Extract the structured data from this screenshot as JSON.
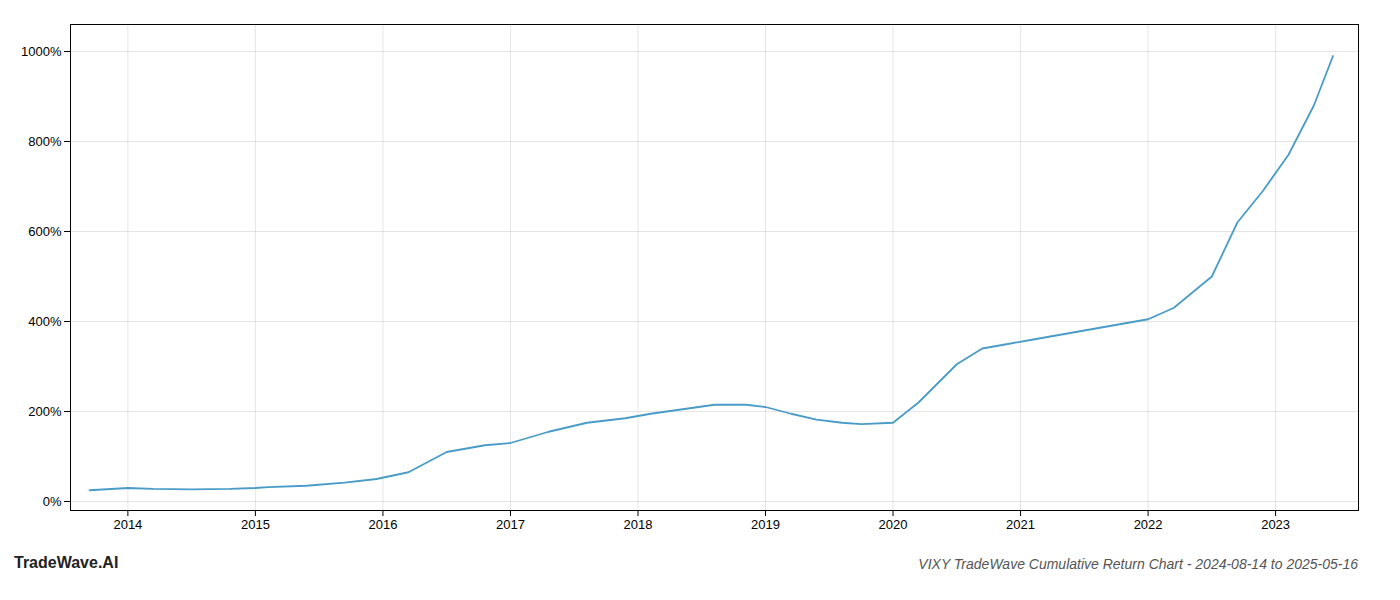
{
  "chart_data": {
    "type": "line",
    "title": "VIXY TradeWave Cumulative Return Chart - 2024-08-14 to 2025-05-16",
    "annotations": [
      "TradeWave.AI"
    ],
    "color": "#4a9cc8",
    "x": [
      2013.7,
      2014.0,
      2014.2,
      2014.5,
      2014.8,
      2015.0,
      2015.1,
      2015.4,
      2015.7,
      2015.95,
      2016.2,
      2016.5,
      2016.8,
      2017.0,
      2017.3,
      2017.6,
      2017.9,
      2018.1,
      2018.35,
      2018.6,
      2018.85,
      2019.0,
      2019.2,
      2019.4,
      2019.6,
      2019.75,
      2020.0,
      2020.2,
      2020.5,
      2020.7,
      2020.9,
      2021.1,
      2021.3,
      2021.6,
      2021.8,
      2022.0,
      2022.2,
      2022.5,
      2022.7,
      2022.9,
      2023.1,
      2023.3,
      2023.45
    ],
    "values": [
      25,
      30,
      28,
      27,
      28,
      30,
      32,
      35,
      42,
      50,
      65,
      110,
      125,
      130,
      155,
      175,
      185,
      195,
      205,
      215,
      215,
      210,
      195,
      182,
      175,
      172,
      175,
      220,
      305,
      340,
      350,
      360,
      370,
      385,
      395,
      405,
      430,
      500,
      620,
      690,
      770,
      880,
      990
    ],
    "xlim": [
      2013.55,
      2023.65
    ],
    "ylim": [
      -20,
      1060
    ],
    "xticks": [
      2014,
      2015,
      2016,
      2017,
      2018,
      2019,
      2020,
      2021,
      2022,
      2023
    ],
    "yticks": [
      {
        "value": 0,
        "label": "0%"
      },
      {
        "value": 200,
        "label": "200%"
      },
      {
        "value": 400,
        "label": "400%"
      },
      {
        "value": 600,
        "label": "600%"
      },
      {
        "value": 800,
        "label": "800%"
      },
      {
        "value": 1000,
        "label": "1000%"
      }
    ],
    "grid": true
  }
}
